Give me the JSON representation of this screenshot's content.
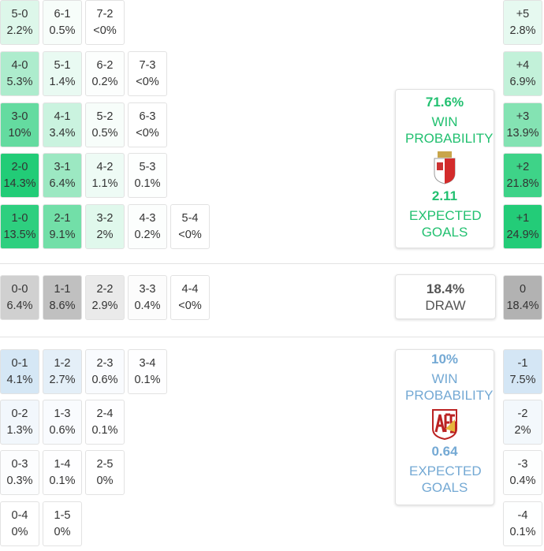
{
  "home": {
    "rows": [
      [
        {
          "score": "5-0",
          "prob": "2.2%"
        },
        {
          "score": "6-1",
          "prob": "0.5%"
        },
        {
          "score": "7-2",
          "prob": "<0%"
        }
      ],
      [
        {
          "score": "4-0",
          "prob": "5.3%"
        },
        {
          "score": "5-1",
          "prob": "1.4%"
        },
        {
          "score": "6-2",
          "prob": "0.2%"
        },
        {
          "score": "7-3",
          "prob": "<0%"
        }
      ],
      [
        {
          "score": "3-0",
          "prob": "10%"
        },
        {
          "score": "4-1",
          "prob": "3.4%"
        },
        {
          "score": "5-2",
          "prob": "0.5%"
        },
        {
          "score": "6-3",
          "prob": "<0%"
        }
      ],
      [
        {
          "score": "2-0",
          "prob": "14.3%"
        },
        {
          "score": "3-1",
          "prob": "6.4%"
        },
        {
          "score": "4-2",
          "prob": "1.1%"
        },
        {
          "score": "5-3",
          "prob": "0.1%"
        }
      ],
      [
        {
          "score": "1-0",
          "prob": "13.5%"
        },
        {
          "score": "2-1",
          "prob": "9.1%"
        },
        {
          "score": "3-2",
          "prob": "2%"
        },
        {
          "score": "4-3",
          "prob": "0.2%"
        },
        {
          "score": "5-4",
          "prob": "<0%"
        }
      ]
    ],
    "margins": [
      {
        "label": "+5",
        "prob": "2.8%"
      },
      {
        "label": "+4",
        "prob": "6.9%"
      },
      {
        "label": "+3",
        "prob": "13.9%"
      },
      {
        "label": "+2",
        "prob": "21.8%"
      },
      {
        "label": "+1",
        "prob": "24.9%"
      }
    ],
    "win_probability": "71.6%",
    "win_label": "WIN PROBABILITY",
    "expected_goals": "2.11",
    "goals_label": "EXPECTED GOALS"
  },
  "draw": {
    "rows": [
      [
        {
          "score": "0-0",
          "prob": "6.4%"
        },
        {
          "score": "1-1",
          "prob": "8.6%"
        },
        {
          "score": "2-2",
          "prob": "2.9%"
        },
        {
          "score": "3-3",
          "prob": "0.4%"
        },
        {
          "score": "4-4",
          "prob": "<0%"
        }
      ]
    ],
    "margins": [
      {
        "label": "0",
        "prob": "18.4%"
      }
    ],
    "probability": "18.4%",
    "label": "DRAW"
  },
  "away": {
    "rows": [
      [
        {
          "score": "0-1",
          "prob": "4.1%"
        },
        {
          "score": "1-2",
          "prob": "2.7%"
        },
        {
          "score": "2-3",
          "prob": "0.6%"
        },
        {
          "score": "3-4",
          "prob": "0.1%"
        }
      ],
      [
        {
          "score": "0-2",
          "prob": "1.3%"
        },
        {
          "score": "1-3",
          "prob": "0.6%"
        },
        {
          "score": "2-4",
          "prob": "0.1%"
        }
      ],
      [
        {
          "score": "0-3",
          "prob": "0.3%"
        },
        {
          "score": "1-4",
          "prob": "0.1%"
        },
        {
          "score": "2-5",
          "prob": "0%"
        }
      ],
      [
        {
          "score": "0-4",
          "prob": "0%"
        },
        {
          "score": "1-5",
          "prob": "0%"
        }
      ]
    ],
    "margins": [
      {
        "label": "-1",
        "prob": "7.5%"
      },
      {
        "label": "-2",
        "prob": "2%"
      },
      {
        "label": "-3",
        "prob": "0.4%"
      },
      {
        "label": "-4",
        "prob": "0.1%"
      }
    ],
    "win_probability": "10%",
    "win_label": "WIN PROBABILITY",
    "expected_goals": "0.64",
    "goals_label": "EXPECTED GOALS"
  }
}
